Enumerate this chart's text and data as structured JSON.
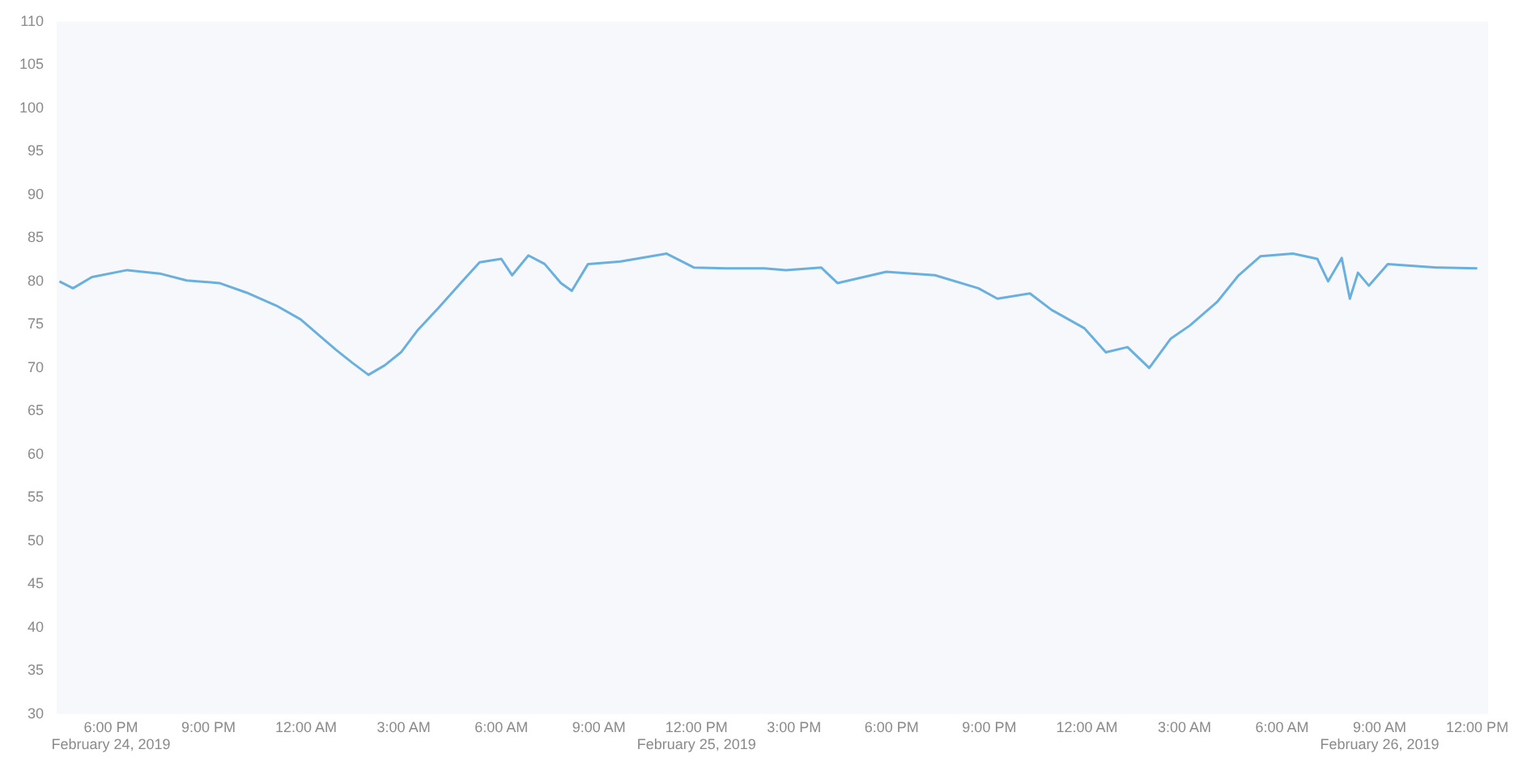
{
  "chart_data": {
    "type": "line",
    "grid": false,
    "legend": false,
    "marker": "none",
    "line_style": "solid",
    "x": [
      "2019-02-24T16:25",
      "2019-02-24T16:50",
      "2019-02-24T17:25",
      "2019-02-24T18:30",
      "2019-02-24T19:30",
      "2019-02-24T20:20",
      "2019-02-24T21:20",
      "2019-02-24T22:10",
      "2019-02-24T23:05",
      "2019-02-24T23:50",
      "2019-02-25T00:25",
      "2019-02-25T00:55",
      "2019-02-25T01:25",
      "2019-02-25T01:55",
      "2019-02-25T02:25",
      "2019-02-25T02:55",
      "2019-02-25T03:25",
      "2019-02-25T04:05",
      "2019-02-25T04:45",
      "2019-02-25T05:20",
      "2019-02-25T06:00",
      "2019-02-25T06:20",
      "2019-02-25T06:50",
      "2019-02-25T07:20",
      "2019-02-25T07:50",
      "2019-02-25T08:10",
      "2019-02-25T08:40",
      "2019-02-25T09:40",
      "2019-02-25T11:05",
      "2019-02-25T11:55",
      "2019-02-25T12:55",
      "2019-02-25T14:05",
      "2019-02-25T14:45",
      "2019-02-25T15:50",
      "2019-02-25T16:20",
      "2019-02-25T17:50",
      "2019-02-25T19:20",
      "2019-02-25T20:40",
      "2019-02-25T21:15",
      "2019-02-25T22:15",
      "2019-02-25T22:55",
      "2019-02-25T23:55",
      "2019-02-26T00:35",
      "2019-02-26T01:15",
      "2019-02-26T01:55",
      "2019-02-26T02:35",
      "2019-02-26T03:10",
      "2019-02-26T04:00",
      "2019-02-26T04:40",
      "2019-02-26T05:20",
      "2019-02-26T06:20",
      "2019-02-26T07:05",
      "2019-02-26T07:25",
      "2019-02-26T07:50",
      "2019-02-26T08:05",
      "2019-02-26T08:20",
      "2019-02-26T08:40",
      "2019-02-26T09:15",
      "2019-02-26T10:45",
      "2019-02-26T12:00"
    ],
    "series": [
      {
        "color": "#6ab0de",
        "values": [
          80.0,
          79.2,
          80.5,
          81.3,
          80.9,
          80.1,
          79.8,
          78.7,
          77.2,
          75.6,
          73.7,
          72.1,
          70.6,
          69.2,
          70.3,
          71.8,
          74.3,
          77.0,
          79.8,
          82.2,
          82.6,
          80.7,
          83.0,
          82.0,
          79.8,
          78.9,
          82.0,
          82.3,
          83.2,
          81.6,
          81.5,
          81.5,
          81.3,
          81.6,
          79.8,
          81.1,
          80.7,
          79.2,
          78.0,
          78.6,
          76.7,
          74.6,
          71.8,
          72.4,
          70.0,
          73.4,
          74.9,
          77.6,
          80.7,
          82.9,
          83.2,
          82.6,
          80.0,
          82.7,
          78.0,
          81.0,
          79.5,
          82.0,
          81.6,
          81.5
        ]
      }
    ],
    "xlim": [
      "2019-02-24T16:20",
      "2019-02-26T12:20"
    ],
    "xticks": [
      {
        "value": "2019-02-24T18:00",
        "label": "6:00 PM\nFebruary 24, 2019"
      },
      {
        "value": "2019-02-24T21:00",
        "label": "9:00 PM"
      },
      {
        "value": "2019-02-25T00:00",
        "label": "12:00 AM"
      },
      {
        "value": "2019-02-25T03:00",
        "label": "3:00 AM"
      },
      {
        "value": "2019-02-25T06:00",
        "label": "6:00 AM"
      },
      {
        "value": "2019-02-25T09:00",
        "label": "9:00 AM"
      },
      {
        "value": "2019-02-25T12:00",
        "label": "12:00 PM\nFebruary 25, 2019"
      },
      {
        "value": "2019-02-25T15:00",
        "label": "3:00 PM"
      },
      {
        "value": "2019-02-25T18:00",
        "label": "6:00 PM"
      },
      {
        "value": "2019-02-25T21:00",
        "label": "9:00 PM"
      },
      {
        "value": "2019-02-26T00:00",
        "label": "12:00 AM"
      },
      {
        "value": "2019-02-26T03:00",
        "label": "3:00 AM"
      },
      {
        "value": "2019-02-26T06:00",
        "label": "6:00 AM"
      },
      {
        "value": "2019-02-26T09:00",
        "label": "9:00 AM\nFebruary 26, 2019"
      },
      {
        "value": "2019-02-26T12:00",
        "label": "12:00 PM"
      }
    ],
    "ylim": [
      30,
      110
    ],
    "yticks": [
      30,
      35,
      40,
      45,
      50,
      55,
      60,
      65,
      70,
      75,
      80,
      85,
      90,
      95,
      100,
      105,
      110
    ]
  }
}
